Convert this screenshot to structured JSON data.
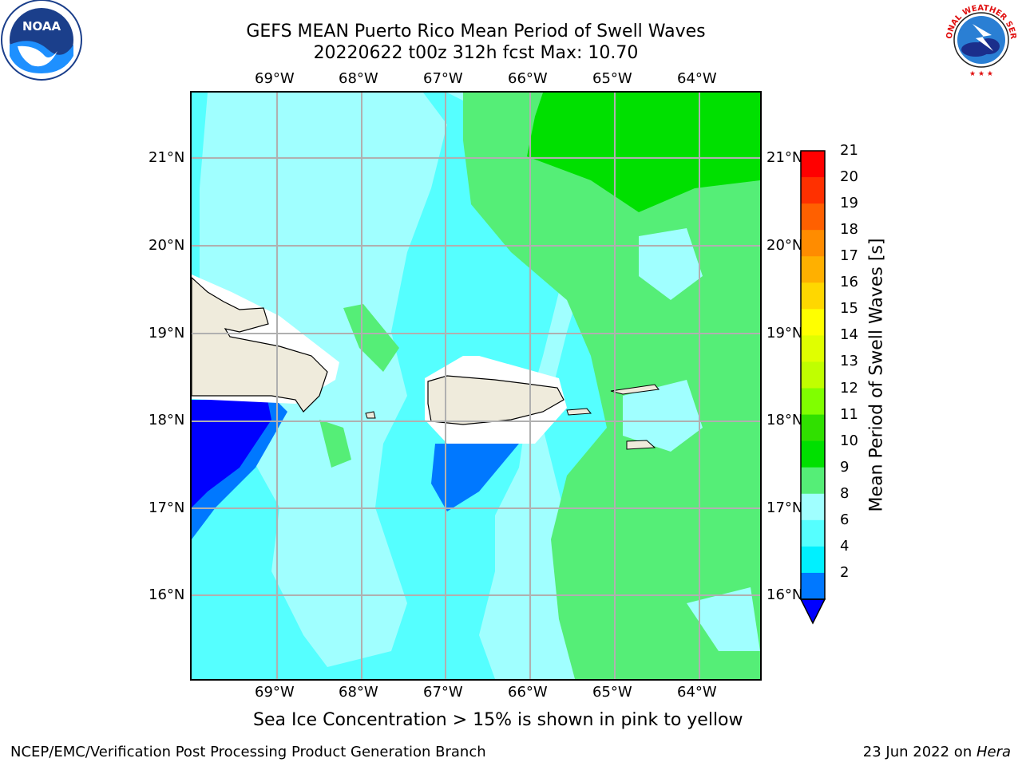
{
  "header": {
    "title_line1": "GEFS MEAN Puerto Rico Mean Period of Swell Waves",
    "title_line2": "20220622 t00z 312h fcst   Max: 10.70"
  },
  "logos": {
    "left": {
      "name": "noaa-logo",
      "text": "NOAA"
    },
    "right": {
      "name": "nws-logo",
      "text": "NATIONAL WEATHER SERVICE"
    }
  },
  "map": {
    "lon_labels": [
      "69°W",
      "68°W",
      "67°W",
      "66°W",
      "65°W",
      "64°W"
    ],
    "lat_labels": [
      "21°N",
      "20°N",
      "19°N",
      "18°N",
      "17°N",
      "16°N"
    ],
    "land_color": "#efebdc",
    "grid_color": "#b0b0b0"
  },
  "colorbar": {
    "title": "Mean Period of Swell Waves [s]",
    "labels": [
      "21",
      "20",
      "19",
      "18",
      "17",
      "16",
      "15",
      "14",
      "13",
      "12",
      "11",
      "10",
      "9",
      "8",
      "6",
      "4",
      "2"
    ],
    "colors": [
      "#ff0000",
      "#ff3000",
      "#ff6000",
      "#ff8c00",
      "#ffb000",
      "#ffd700",
      "#ffff00",
      "#e0ff00",
      "#c0ff00",
      "#80ff00",
      "#30e000",
      "#00e000",
      "#55ee77",
      "#a0ffff",
      "#55ffff",
      "#00f0ff",
      "#0078ff"
    ],
    "under_color": "#0000ff"
  },
  "footer": {
    "note": "Sea Ice Concentration > 15% is shown in pink to yellow",
    "branch": "NCEP/EMC/Verification Post Processing Product Generation Branch",
    "date": "23 Jun 2022 on ",
    "host": "Hera"
  }
}
